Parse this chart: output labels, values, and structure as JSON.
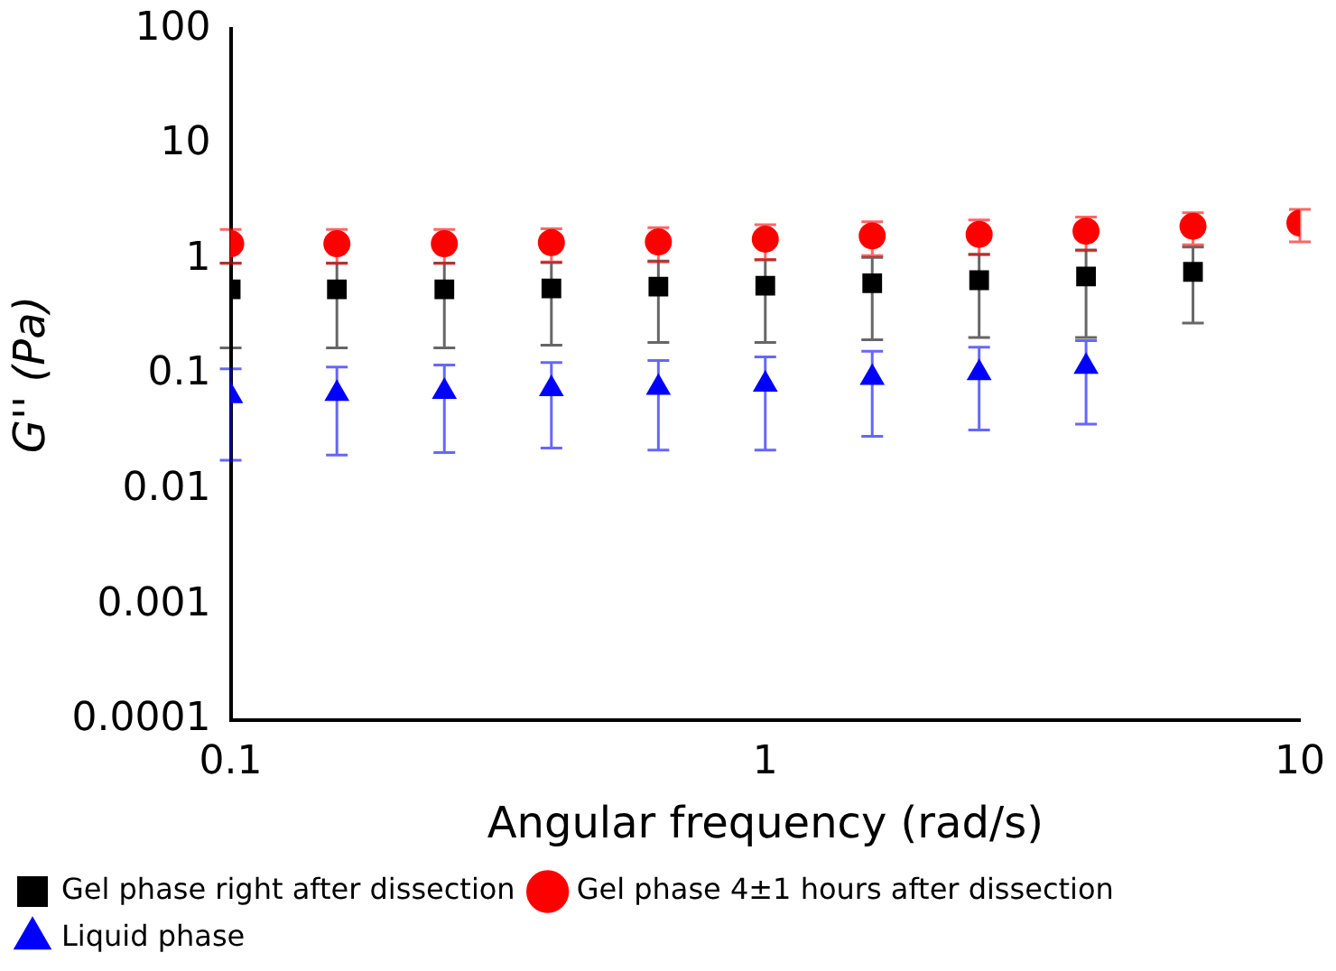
{
  "chart_data": {
    "type": "scatter",
    "xlabel": "Angular frequency (rad/s)",
    "ylabel": "G'' (Pa)",
    "log": "xy",
    "grid": false,
    "legend": "bottom left",
    "xlim": [
      0.1,
      10
    ],
    "xticks": [
      0.1,
      1,
      10
    ],
    "ylim": [
      0.0001,
      100
    ],
    "yticks": [
      0.0001,
      0.001,
      0.01,
      0.1,
      1,
      10,
      100
    ],
    "x": [
      0.1,
      0.158,
      0.251,
      0.398,
      0.631,
      1,
      1.585,
      2.512,
      3.981,
      6.31,
      10
    ],
    "series": [
      {
        "name": "Gel phase right after dissection",
        "color": "#000000",
        "marker": "square",
        "values": [
          0.55,
          0.55,
          0.55,
          0.56,
          0.58,
          0.59,
          0.62,
          0.66,
          0.71,
          0.78,
          null
        ],
        "errors": [
          0.38,
          0.38,
          0.38,
          0.38,
          0.39,
          0.4,
          0.42,
          0.45,
          0.5,
          0.5,
          null
        ]
      },
      {
        "name": "Gel phase 4±1 hours after dissection",
        "color": "#ff0000",
        "marker": "circle",
        "values": [
          1.37,
          1.37,
          1.37,
          1.4,
          1.42,
          1.5,
          1.6,
          1.65,
          1.76,
          1.94,
          2.07
        ],
        "errors": [
          0.45,
          0.45,
          0.45,
          0.45,
          0.47,
          0.5,
          0.52,
          0.55,
          0.57,
          0.6,
          0.65
        ]
      },
      {
        "name": "Liquid phase",
        "color": "#0000ff",
        "marker": "triangle",
        "values": [
          0.065,
          0.068,
          0.071,
          0.075,
          0.077,
          0.082,
          0.094,
          0.103,
          0.117,
          null,
          null
        ],
        "errors": [
          0.047,
          0.048,
          0.05,
          0.052,
          0.055,
          0.06,
          0.065,
          0.07,
          0.08,
          null,
          null
        ]
      }
    ]
  }
}
